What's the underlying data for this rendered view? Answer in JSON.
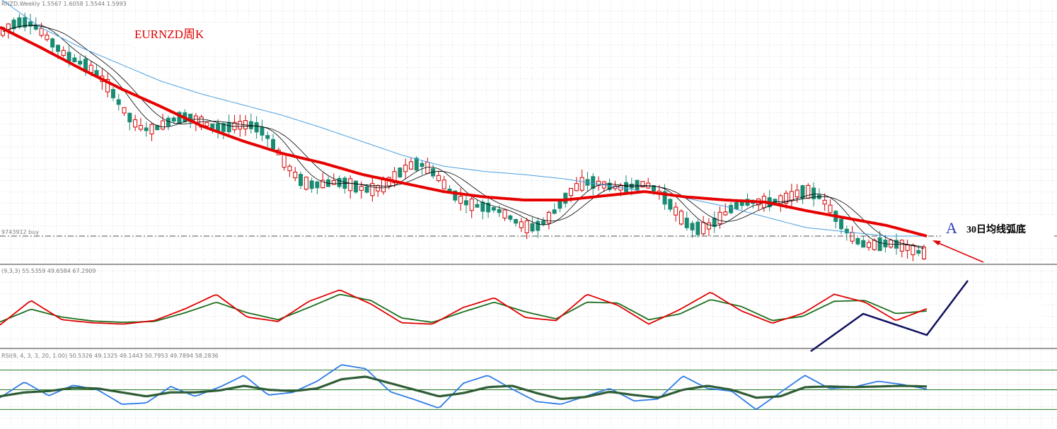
{
  "header": {
    "main": "RNZD,Weekly  1.5567 1.6058 1.5544 1.5993",
    "price_line": "9743912 buy",
    "stoch": "(9,3,3) 55.5359 49.6584 67.2909",
    "rsi": "RSI(9, 4, 3, 3, 20, 1.00) 50.5326 49.1325 49.1443 50.7953 49.7894 58.2836"
  },
  "annotations": {
    "title": "EURNZD周K",
    "marker": "A",
    "note": "30日均线弧底"
  },
  "colors": {
    "background": "#ffffff",
    "grid": "#c8c8c8",
    "bull_candle": "#d40000",
    "bear_candle": "#1a8b73",
    "ma30": "#e60000",
    "ma_long": "#4a9fe0",
    "ma_fast": "#000000",
    "stoch_k": "#e00000",
    "stoch_d": "#1c6e1c",
    "rsi_fast": "#2e7be6",
    "rsi_slow": "#2f5d36",
    "rsi_levels": "#1f7a1f",
    "arrow": "#e00000",
    "trend_sketch": "#101060"
  },
  "chart_data": [
    {
      "type": "candlestick",
      "symbol": "EURNZD",
      "timeframe": "Weekly",
      "header_values": [
        1.5567,
        1.6058,
        1.5544,
        1.5993
      ],
      "series": [
        {
          "name": "",
          "role": "ma30_red_thick",
          "values": [
            0.985,
            0.89,
            0.79,
            0.695,
            0.61,
            0.52,
            0.45,
            0.39,
            0.345,
            0.29,
            0.25,
            0.21,
            0.185,
            0.17,
            0.17,
            0.19,
            0.21,
            0.185,
            0.17,
            0.16,
            0.12,
            0.085,
            0.05,
            0.0
          ]
        },
        {
          "name": "",
          "role": "ma_long_blue",
          "values": [
            1.12,
            0.985,
            0.89,
            0.81,
            0.73,
            0.67,
            0.62,
            0.57,
            0.51,
            0.445,
            0.38,
            0.33,
            0.305,
            0.29,
            0.27,
            0.24,
            0.21,
            0.18,
            0.14,
            0.09,
            0.04,
            0.02,
            0.0,
            0.0
          ]
        }
      ],
      "price_level_line": 0.0
    },
    {
      "type": "line",
      "name": "Stochastic",
      "params": [
        9,
        3,
        3
      ],
      "header_values": [
        55.5359,
        49.6584,
        67.2909
      ],
      "series": [
        {
          "name": "",
          "role": "k_red",
          "values": [
            0.1,
            0.66,
            0.22,
            0.15,
            0.12,
            0.2,
            0.47,
            0.8,
            0.28,
            0.18,
            0.64,
            0.9,
            0.58,
            0.15,
            0.12,
            0.5,
            0.72,
            0.27,
            0.2,
            0.8,
            0.55,
            0.12,
            0.45,
            0.85,
            0.42,
            0.14,
            0.37,
            0.8,
            0.62,
            0.2,
            0.47
          ]
        },
        {
          "name": "",
          "role": "d_green",
          "values": [
            0.17,
            0.46,
            0.28,
            0.19,
            0.16,
            0.18,
            0.38,
            0.62,
            0.38,
            0.22,
            0.5,
            0.8,
            0.66,
            0.26,
            0.16,
            0.4,
            0.62,
            0.4,
            0.24,
            0.62,
            0.6,
            0.22,
            0.35,
            0.68,
            0.52,
            0.2,
            0.3,
            0.64,
            0.66,
            0.36,
            0.42
          ]
        }
      ]
    },
    {
      "type": "line",
      "name": "RSI",
      "params": [
        9,
        4,
        3,
        3,
        20,
        1.0
      ],
      "header_values": [
        50.5326,
        49.1325,
        49.1443,
        50.7953,
        49.7894,
        58.2836
      ],
      "levels": [
        80,
        50,
        20
      ],
      "ylim": [
        0,
        100
      ],
      "series": [
        {
          "name": "",
          "role": "fast_blue",
          "values": [
            38,
            62,
            41,
            57,
            50,
            28,
            30,
            55,
            40,
            54,
            72,
            42,
            46,
            63,
            88,
            82,
            47,
            35,
            22,
            60,
            72,
            51,
            32,
            28,
            40,
            52,
            33,
            36,
            71,
            52,
            48,
            20,
            46,
            72,
            52,
            54,
            63,
            58,
            51
          ]
        },
        {
          "name": "",
          "role": "slow_dark",
          "values": [
            40,
            46,
            48,
            53,
            52,
            46,
            40,
            46,
            46,
            49,
            56,
            50,
            48,
            52,
            66,
            70,
            60,
            50,
            40,
            45,
            54,
            56,
            45,
            36,
            39,
            47,
            42,
            38,
            50,
            56,
            50,
            38,
            40,
            54,
            55,
            54,
            55,
            56,
            55
          ]
        }
      ]
    }
  ]
}
